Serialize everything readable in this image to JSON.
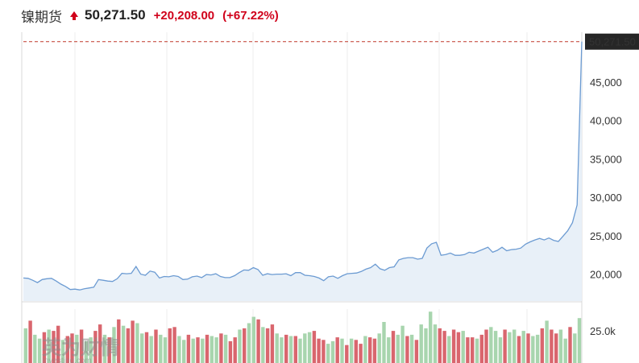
{
  "header": {
    "title": "镍期货",
    "price": "50,271.50",
    "change": "+20,208.00",
    "change_pct": "(+67.22%)",
    "direction_icon": "up-arrow-icon"
  },
  "colors": {
    "up": "#d0021b",
    "line": "#6c9bd2",
    "area": "#e8f0f8",
    "vol_up": "#a8d5ae",
    "vol_down": "#d9666e",
    "last_price_bg": "#262626",
    "ref_line": "#c0392b"
  },
  "watermark": "英为财情 Investing.com",
  "chart_data": [
    {
      "type": "area",
      "title": "",
      "ylim": [
        16500,
        51500
      ],
      "y_ticks": [
        "20,000",
        "25,000",
        "30,000",
        "35,000",
        "40,000",
        "45,000"
      ],
      "y_tick_values": [
        20000,
        25000,
        30000,
        35000,
        40000,
        45000
      ],
      "last_price_label": "50,271.50",
      "last_price": 50271.5,
      "grid": "vertical",
      "series": [
        {
          "values": [
            19500,
            19450,
            19200,
            18900,
            19300,
            19400,
            19450,
            19100,
            18700,
            18400,
            18000,
            18050,
            17950,
            18100,
            18200,
            18300,
            19300,
            19200,
            19100,
            19050,
            19400,
            20100,
            20050,
            20100,
            21000,
            20000,
            19850,
            20400,
            20250,
            19500,
            19700,
            19650,
            19800,
            19700,
            19300,
            19350,
            19650,
            19750,
            19550,
            19950,
            19900,
            20050,
            19700,
            19550,
            19550,
            19800,
            20200,
            20550,
            20500,
            20850,
            20600,
            19850,
            20050,
            19950,
            20000,
            20000,
            20050,
            19800,
            20200,
            20200,
            19850,
            19800,
            19700,
            19500,
            19150,
            19650,
            19750,
            19450,
            19800,
            20050,
            20100,
            20150,
            20350,
            20650,
            20850,
            21300,
            20700,
            20500,
            20850,
            20950,
            21850,
            22050,
            22150,
            22150,
            21950,
            22050,
            23400,
            23950,
            24150,
            22450,
            22550,
            22750,
            22450,
            22450,
            22550,
            22850,
            22750,
            23000,
            23250,
            23500,
            22850,
            23100,
            23500,
            23050,
            23200,
            23250,
            23400,
            23900,
            24200,
            24450,
            24650,
            24450,
            24700,
            24400,
            24250,
            24950,
            25650,
            26700,
            29000,
            50271.5
          ]
        }
      ]
    },
    {
      "type": "bar",
      "title": "",
      "y_ticks": [
        "25.0k"
      ],
      "y_tick_values": [
        25000
      ],
      "ylim": [
        0,
        42000
      ],
      "values": [
        27000,
        33000,
        22000,
        19000,
        24000,
        26000,
        25000,
        29000,
        18000,
        21000,
        23000,
        22000,
        26000,
        17000,
        20000,
        25000,
        30000,
        22000,
        20000,
        28000,
        34000,
        29000,
        27000,
        33000,
        31000,
        23000,
        24000,
        21000,
        26000,
        22000,
        20000,
        27000,
        28000,
        21000,
        18000,
        22000,
        19000,
        20000,
        19000,
        22000,
        21000,
        20000,
        23000,
        22000,
        17000,
        20000,
        26000,
        27000,
        31000,
        36000,
        34000,
        28000,
        27000,
        30000,
        23000,
        20000,
        22000,
        21000,
        21000,
        19000,
        23000,
        24000,
        25000,
        19000,
        18000,
        15000,
        17000,
        20000,
        19000,
        14000,
        19000,
        18000,
        15000,
        21000,
        20000,
        19000,
        23000,
        32000,
        20000,
        25000,
        22000,
        29000,
        21000,
        22000,
        18000,
        30000,
        27000,
        40000,
        30000,
        27000,
        25000,
        21000,
        26000,
        24000,
        25000,
        20000,
        20000,
        19000,
        22000,
        26000,
        28000,
        25000,
        20000,
        26000,
        24000,
        26000,
        21000,
        25000,
        23000,
        21000,
        22000,
        27000,
        33000,
        26000,
        23000,
        26000,
        19000,
        28000,
        23000,
        35000
      ],
      "up": [
        1,
        0,
        1,
        1,
        0,
        1,
        0,
        0,
        1,
        0,
        0,
        1,
        0,
        1,
        1,
        0,
        0,
        1,
        0,
        1,
        0,
        1,
        0,
        0,
        1,
        1,
        0,
        1,
        0,
        1,
        1,
        0,
        0,
        1,
        1,
        0,
        1,
        0,
        1,
        0,
        1,
        1,
        0,
        1,
        0,
        0,
        1,
        0,
        1,
        1,
        0,
        1,
        0,
        0,
        1,
        1,
        0,
        1,
        0,
        1,
        1,
        1,
        0,
        0,
        0,
        1,
        1,
        0,
        1,
        0,
        1,
        0,
        0,
        1,
        0,
        0,
        1,
        1,
        1,
        0,
        1,
        1,
        0,
        1,
        0,
        1,
        1,
        1,
        1,
        0,
        0,
        1,
        0,
        0,
        1,
        0,
        0,
        1,
        0,
        0,
        1,
        1,
        1,
        0,
        1,
        1,
        0,
        1,
        0,
        1,
        1,
        0,
        1,
        0,
        0,
        1,
        1,
        0,
        1,
        1
      ]
    }
  ]
}
